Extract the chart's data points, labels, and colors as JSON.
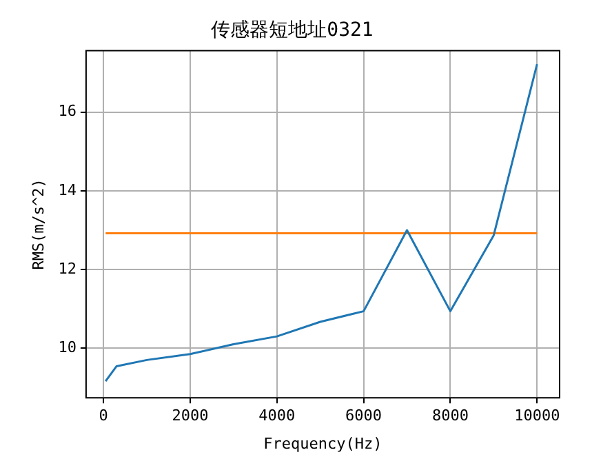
{
  "chart_data": {
    "type": "line",
    "title": "传感器短地址0321",
    "xlabel": "Frequency(Hz)",
    "ylabel": "RMS(m/s^2)",
    "xlim": [
      -400,
      10520
    ],
    "ylim": [
      8.74,
      17.56
    ],
    "xticks": [
      0,
      2000,
      4000,
      6000,
      8000,
      10000
    ],
    "yticks": [
      10,
      12,
      14,
      16
    ],
    "grid": true,
    "series": [
      {
        "color": "#1f77b4",
        "x": [
          50,
          300,
          1000,
          2000,
          3000,
          4000,
          5000,
          6000,
          7000,
          8000,
          9000,
          10000
        ],
        "values": [
          9.16,
          9.54,
          9.7,
          9.85,
          10.1,
          10.3,
          10.67,
          10.94,
          13.0,
          10.94,
          12.87,
          17.22
        ]
      },
      {
        "color": "#ff7f0e",
        "x": [
          50,
          10000
        ],
        "values": [
          12.92,
          12.92
        ]
      }
    ]
  }
}
